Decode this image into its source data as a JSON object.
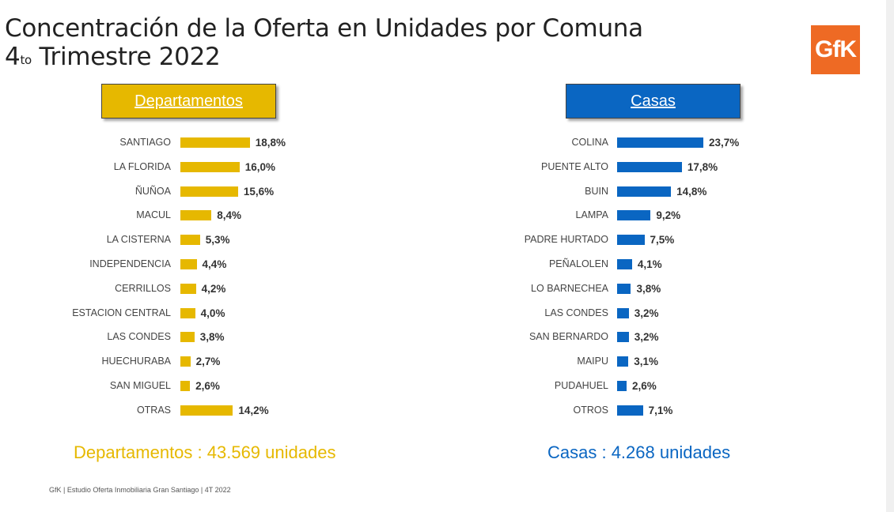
{
  "title_line1": "Concentración de la Oferta en Unidades por Comuna",
  "title_line2_pre": "4",
  "title_line2_sup": "to",
  "title_line2_post": " Trimestre 2022",
  "logo_text": "GfK",
  "footer": "GfK | Estudio Oferta Inmobiliaria Gran Santiago | 4T 2022",
  "colors": {
    "departamentos": "#e6b800",
    "casas": "#0a66c2",
    "logo": "#ee6a24"
  },
  "chart_data": [
    {
      "type": "bar",
      "orientation": "horizontal",
      "title": "Departamentos",
      "categories": [
        "SANTIAGO",
        "LA FLORIDA",
        "ÑUÑOA",
        "MACUL",
        "LA CISTERNA",
        "INDEPENDENCIA",
        "CERRILLOS",
        "ESTACION CENTRAL",
        "LAS CONDES",
        "HUECHURABA",
        "SAN MIGUEL",
        "OTRAS"
      ],
      "values": [
        18.8,
        16.0,
        15.6,
        8.4,
        5.3,
        4.4,
        4.2,
        4.0,
        3.8,
        2.7,
        2.6,
        14.2
      ],
      "value_labels": [
        "18,8%",
        "16,0%",
        "15,6%",
        "8,4%",
        "5,3%",
        "4,4%",
        "4,2%",
        "4,0%",
        "3,8%",
        "2,7%",
        "2,6%",
        "14,2%"
      ],
      "total_label": "Departamentos : 43.569 unidades"
    },
    {
      "type": "bar",
      "orientation": "horizontal",
      "title": "Casas",
      "categories": [
        "COLINA",
        "PUENTE ALTO",
        "BUIN",
        "LAMPA",
        "PADRE HURTADO",
        "PEÑALOLEN",
        "LO BARNECHEA",
        "LAS CONDES",
        "SAN BERNARDO",
        "MAIPU",
        "PUDAHUEL",
        "OTROS"
      ],
      "values": [
        23.7,
        17.8,
        14.8,
        9.2,
        7.5,
        4.1,
        3.8,
        3.2,
        3.2,
        3.1,
        2.6,
        7.1
      ],
      "value_labels": [
        "23,7%",
        "17,8%",
        "14,8%",
        "9,2%",
        "7,5%",
        "4,1%",
        "3,8%",
        "3,2%",
        "3,2%",
        "3,1%",
        "2,6%",
        "7,1%"
      ],
      "total_label": "Casas : 4.268 unidades"
    }
  ]
}
